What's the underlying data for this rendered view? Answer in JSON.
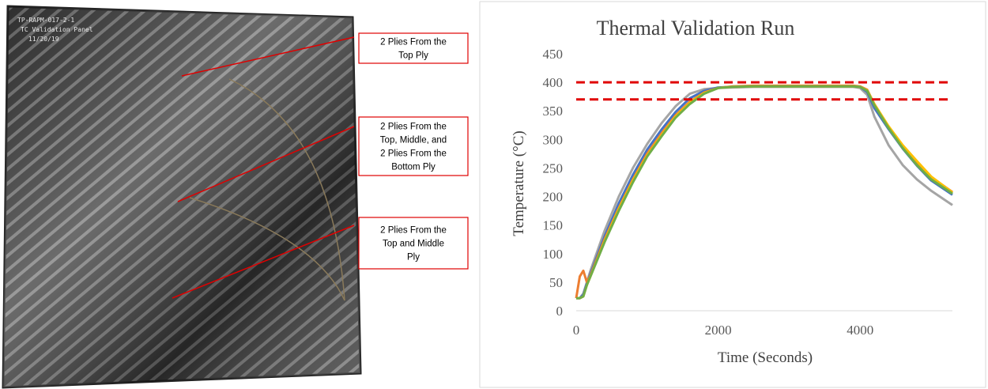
{
  "photo": {
    "handwriting": [
      "TP-RAPM-017-2-1",
      "TC Validation Panel",
      "11/20/19"
    ],
    "callouts": [
      [
        "2 Plies From the",
        "Top Ply"
      ],
      [
        "2 Plies From the",
        "Top, Middle, and",
        "2 Plies From the",
        "Bottom Ply"
      ],
      [
        "2 Plies From the",
        "Top and Middle",
        "Ply"
      ]
    ]
  },
  "chart_data": {
    "type": "line",
    "title": "Thermal Validation Run",
    "x_label": "Time (Seconds)",
    "y_label": "Temperature (°C)",
    "x": [
      0,
      50,
      100,
      150,
      200,
      400,
      600,
      800,
      1000,
      1200,
      1400,
      1600,
      1800,
      2000,
      2200,
      2500,
      3000,
      3500,
      3900,
      4000,
      4100,
      4200,
      4400,
      4600,
      4800,
      5000,
      5300
    ],
    "xlim": [
      0,
      5300
    ],
    "xticks": [
      0,
      2000,
      4000
    ],
    "ylim": [
      0,
      450
    ],
    "yticks": [
      0,
      50,
      100,
      150,
      200,
      250,
      300,
      350,
      400,
      450
    ],
    "series": [
      {
        "color": "#a5a5a5",
        "values": [
          22,
          22,
          30,
          50,
          70,
          140,
          200,
          250,
          292,
          328,
          358,
          380,
          388,
          390,
          391,
          392,
          392,
          392,
          392,
          390,
          378,
          340,
          290,
          255,
          230,
          210,
          185
        ]
      },
      {
        "color": "#4472c4",
        "values": [
          22,
          22,
          28,
          48,
          65,
          130,
          188,
          238,
          282,
          317,
          348,
          372,
          385,
          391,
          392,
          393,
          393,
          393,
          393,
          392,
          383,
          355,
          318,
          284,
          254,
          228,
          203
        ]
      },
      {
        "color": "#ed7d31",
        "values": [
          22,
          60,
          70,
          50,
          62,
          125,
          180,
          230,
          275,
          310,
          342,
          366,
          382,
          390,
          393,
          394,
          394,
          394,
          394,
          393,
          387,
          362,
          322,
          288,
          260,
          234,
          208
        ]
      },
      {
        "color": "#ffc000",
        "values": [
          22,
          22,
          25,
          45,
          60,
          122,
          178,
          228,
          272,
          307,
          340,
          364,
          381,
          390,
          392,
          393,
          393,
          393,
          393,
          392,
          386,
          362,
          323,
          290,
          262,
          235,
          207
        ]
      },
      {
        "color": "#70ad47",
        "values": [
          22,
          22,
          25,
          45,
          60,
          120,
          175,
          225,
          270,
          305,
          338,
          362,
          380,
          390,
          392,
          393,
          393,
          393,
          393,
          392,
          385,
          360,
          320,
          285,
          255,
          230,
          205
        ]
      }
    ],
    "reference_lines": [
      {
        "value": 400,
        "color": "#e00000"
      },
      {
        "value": 370,
        "color": "#e00000"
      }
    ]
  }
}
